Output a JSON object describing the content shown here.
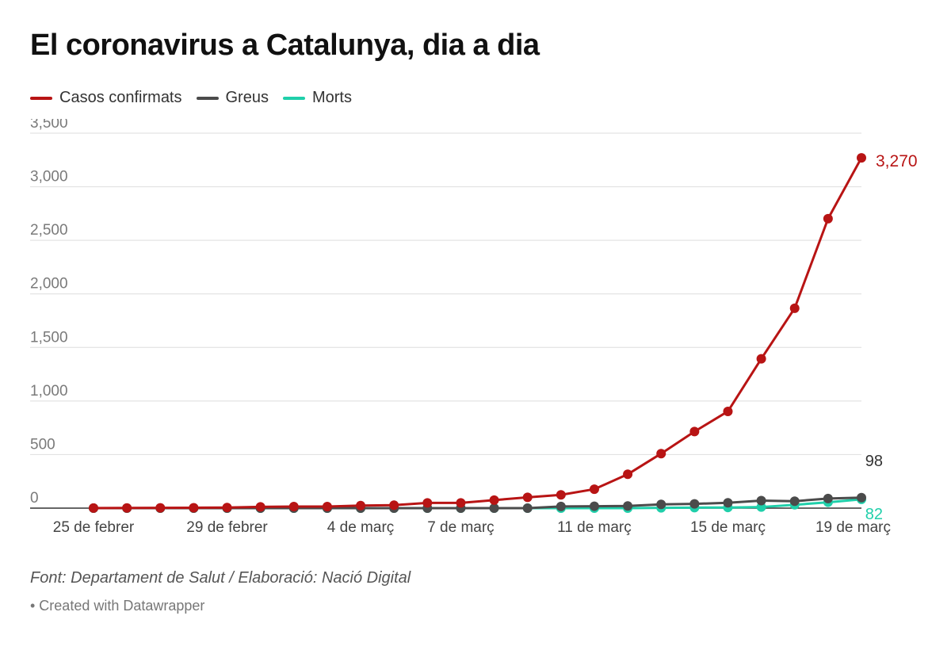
{
  "title": "El coronavirus a Catalunya, dia a dia",
  "legend": [
    {
      "label": "Casos confirmats",
      "color": "#b81414"
    },
    {
      "label": "Greus",
      "color": "#4b4b4b"
    },
    {
      "label": "Morts",
      "color": "#1fcfaa"
    }
  ],
  "footer": {
    "source": "Font: Departament de Salut / Elaboració: Nació Digital",
    "credit": "• Created with Datawrapper"
  },
  "chart_data": {
    "type": "line",
    "title": "El coronavirus a Catalunya, dia a dia",
    "xlabel": "",
    "ylabel": "",
    "ylim": [
      0,
      3500
    ],
    "y_ticks": [
      0,
      500,
      1000,
      1500,
      2000,
      2500,
      3000,
      3500
    ],
    "y_tick_labels": [
      "0",
      "500",
      "1,000",
      "1,500",
      "2,000",
      "2,500",
      "3,000",
      "3,500"
    ],
    "x": [
      "25 feb",
      "26 feb",
      "27 feb",
      "28 feb",
      "29 feb",
      "1 mar",
      "2 mar",
      "3 mar",
      "4 mar",
      "5 mar",
      "6 mar",
      "7 mar",
      "8 mar",
      "9 mar",
      "10 mar",
      "11 mar",
      "12 mar",
      "13 mar",
      "14 mar",
      "15 mar",
      "16 mar",
      "17 mar",
      "18 mar",
      "19 mar"
    ],
    "x_tick_labels": [
      {
        "index": 0,
        "label": "25 de febrer"
      },
      {
        "index": 4,
        "label": "29 de febrer"
      },
      {
        "index": 8,
        "label": "4 de març"
      },
      {
        "index": 11,
        "label": "7 de març"
      },
      {
        "index": 15,
        "label": "11 de març"
      },
      {
        "index": 19,
        "label": "15 de març"
      },
      {
        "index": 23,
        "label": "19 de març"
      }
    ],
    "grid": true,
    "legend_position": "top-left",
    "series": [
      {
        "name": "Casos confirmats",
        "color": "#b81414",
        "values": [
          1,
          2,
          3,
          4,
          6,
          12,
          15,
          15,
          24,
          28,
          49,
          49,
          75,
          101,
          124,
          177,
          316,
          509,
          715,
          903,
          1394,
          1866,
          2702,
          3270
        ],
        "end_label": "3,270"
      },
      {
        "name": "Greus",
        "color": "#4b4b4b",
        "values": [
          0,
          0,
          0,
          0,
          0,
          0,
          0,
          0,
          0,
          0,
          0,
          0,
          0,
          0,
          16,
          18,
          20,
          35,
          40,
          50,
          70,
          65,
          90,
          98
        ],
        "end_label": "98"
      },
      {
        "name": "Morts",
        "color": "#1fcfaa",
        "values": [
          0,
          0,
          0,
          0,
          0,
          0,
          0,
          0,
          0,
          0,
          0,
          0,
          0,
          0,
          0,
          0,
          0,
          3,
          5,
          6,
          10,
          31,
          55,
          82
        ],
        "end_label": "82"
      }
    ]
  }
}
